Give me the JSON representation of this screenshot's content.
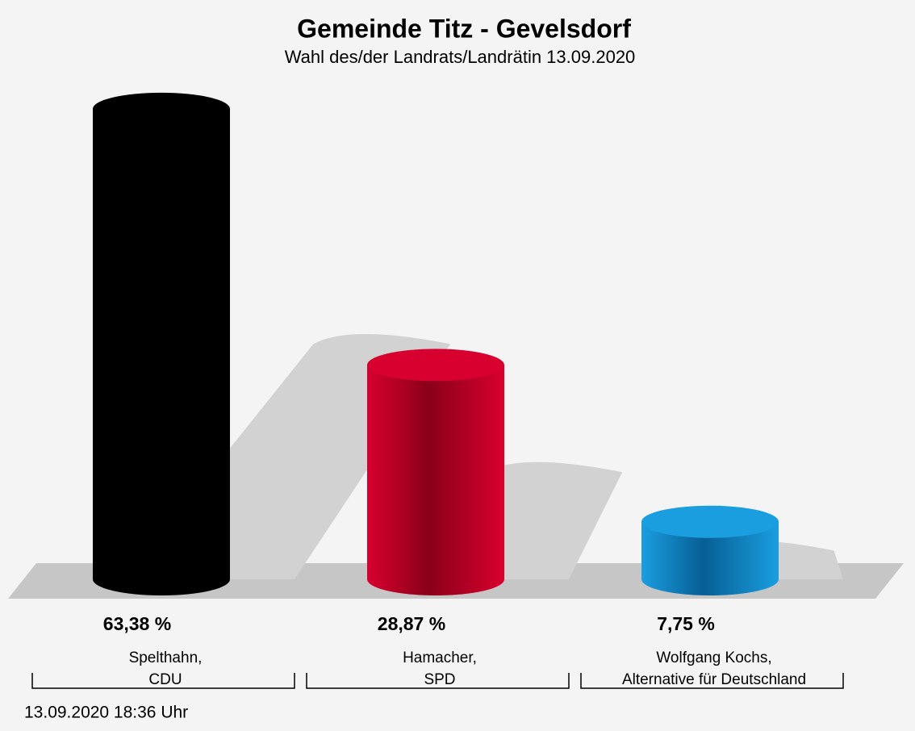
{
  "chart_data": {
    "type": "bar",
    "title": "Gemeinde Titz - Gevelsdorf",
    "subtitle": "Wahl des/der Landrats/Landrätin 13.09.2020",
    "categories": [
      [
        "Spelthahn,",
        "CDU"
      ],
      [
        "Hamacher,",
        "SPD"
      ],
      [
        "Wolfgang Kochs,",
        "Alternative für Deutschland"
      ]
    ],
    "values": [
      63.38,
      28.87,
      7.75
    ],
    "value_labels": [
      "63,38 %",
      "28,87 %",
      "7,75 %"
    ],
    "colors": [
      "#000000",
      "#c8002a",
      "#0b8fd4"
    ],
    "footer": "13.09.2020 18:36 Uhr"
  }
}
